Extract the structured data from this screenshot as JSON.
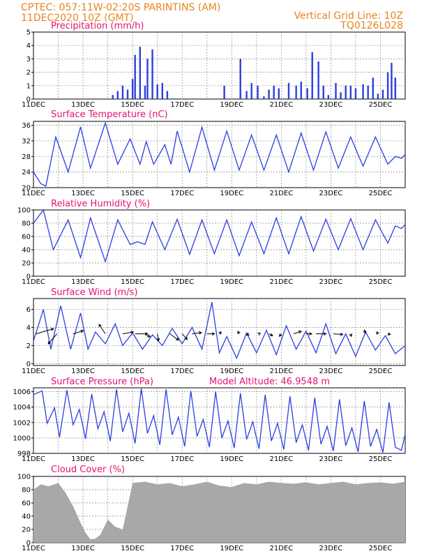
{
  "header": {
    "left_line1": "CPTEC:   057:11W-02:20S   PARINTINS (AM)",
    "left_line2": "11DEC2020  10Z (GMT)",
    "right_line1": "Vertical Grid Line: 10Z",
    "right_line2": "TQ0126L028",
    "model_altitude": "Model Altitude: 46.9548  m"
  },
  "colors": {
    "line": "#2b3fe0",
    "header": "#e8841e",
    "title": "#e5126f",
    "cloud": "#a8a8a8"
  },
  "x_ticks": [
    "11DEC",
    "13DEC",
    "15DEC",
    "17DEC",
    "19DEC",
    "21DEC",
    "23DEC",
    "25DEC"
  ],
  "chart_data": [
    {
      "type": "bar",
      "title": "Precipitation (mm/h)",
      "ylim": [
        0,
        5
      ],
      "yticks": [
        0,
        1,
        2,
        3,
        4,
        5
      ],
      "x_start": "2020-12-11T10Z",
      "x_end": "2020-12-26T10Z",
      "x": [
        3.2,
        3.4,
        3.6,
        3.8,
        4.0,
        4.1,
        4.3,
        4.5,
        4.6,
        4.8,
        5.0,
        5.2,
        5.4,
        7.7,
        8.35,
        8.6,
        8.8,
        9.05,
        9.3,
        9.5,
        9.7,
        9.9,
        10.3,
        10.6,
        10.8,
        11.05,
        11.25,
        11.5,
        11.7,
        11.9,
        12.2,
        12.4,
        12.6,
        12.8,
        13.0,
        13.3,
        13.5,
        13.7,
        13.9,
        14.1,
        14.3,
        14.45,
        14.6
      ],
      "values": [
        0.3,
        0.6,
        1.0,
        0.7,
        1.5,
        3.3,
        3.9,
        1.0,
        3.0,
        3.7,
        1.1,
        1.2,
        0.6,
        1.0,
        3.0,
        0.6,
        1.2,
        1.0,
        0.2,
        0.7,
        1.0,
        0.8,
        1.2,
        1.0,
        1.3,
        0.8,
        3.5,
        2.8,
        1.0,
        0.3,
        1.2,
        0.5,
        1.0,
        1.0,
        0.8,
        1.1,
        1.0,
        1.6,
        0.4,
        0.7,
        2.0,
        2.7,
        1.6
      ],
      "y_base": 0
    },
    {
      "type": "line",
      "title": "Surface Temperature (nC)",
      "ylim": [
        20,
        37
      ],
      "yticks": [
        20,
        24,
        28,
        32,
        36
      ],
      "x_days": [
        0,
        0.3,
        0.5,
        0.9,
        1.4,
        1.9,
        2.3,
        2.9,
        3.4,
        3.9,
        4.3,
        4.55,
        4.85,
        5.3,
        5.55,
        5.8,
        6.3,
        6.8,
        7.3,
        7.8,
        8.3,
        8.8,
        9.3,
        9.8,
        10.3,
        10.8,
        11.3,
        11.8,
        12.3,
        12.8,
        13.3,
        13.8,
        14.3,
        14.6,
        14.85,
        15
      ],
      "values": [
        24,
        21,
        20.4,
        33,
        24,
        35.6,
        25,
        36.6,
        26,
        32.5,
        26,
        31.8,
        26,
        31,
        26,
        34.5,
        24,
        35.5,
        24.5,
        34.5,
        24.5,
        33.5,
        24.5,
        33.5,
        24,
        34,
        24.5,
        34.3,
        25,
        33,
        25.5,
        33,
        26,
        28,
        27.5,
        28.5
      ],
      "y_base": 20
    },
    {
      "type": "line",
      "title": "Relative Humidity (%)",
      "ylim": [
        0,
        100
      ],
      "yticks": [
        0,
        20,
        40,
        60,
        80,
        100
      ],
      "x_days": [
        0,
        0.4,
        0.8,
        1.4,
        1.9,
        2.3,
        2.9,
        3.4,
        3.9,
        4.2,
        4.5,
        4.8,
        5.3,
        5.8,
        6.3,
        6.8,
        7.3,
        7.8,
        8.3,
        8.8,
        9.3,
        9.8,
        10.3,
        10.8,
        11.3,
        11.8,
        12.3,
        12.8,
        13.3,
        13.8,
        14.3,
        14.6,
        14.85,
        15
      ],
      "values": [
        80,
        100,
        40,
        85,
        28,
        88,
        22,
        85,
        48,
        52,
        48,
        82,
        40,
        86,
        33,
        85,
        34,
        85,
        31,
        82,
        34,
        88,
        34,
        90,
        38,
        86,
        40,
        87,
        40,
        85,
        50,
        76,
        72,
        78
      ],
      "y_base": 0
    },
    {
      "type": "line",
      "title": "Surface Wind (m/s)",
      "ylim": [
        -0.2,
        7.2
      ],
      "yticks": [
        0,
        2,
        4,
        6
      ],
      "x_days": [
        0,
        0.4,
        0.7,
        1.1,
        1.5,
        1.9,
        2.2,
        2.5,
        2.9,
        3.3,
        3.6,
        4.0,
        4.4,
        4.8,
        5.2,
        5.6,
        6.0,
        6.4,
        6.8,
        7.2,
        7.5,
        7.8,
        8.2,
        8.6,
        9.0,
        9.4,
        9.8,
        10.2,
        10.6,
        11.0,
        11.4,
        11.8,
        12.2,
        12.6,
        13.0,
        13.4,
        13.8,
        14.2,
        14.6,
        15
      ],
      "values": [
        2.5,
        6.0,
        1.6,
        6.4,
        1.6,
        5.6,
        1.6,
        3.5,
        2.2,
        4.4,
        2.0,
        3.4,
        1.6,
        3.2,
        2.0,
        3.9,
        2.2,
        4.0,
        1.6,
        6.8,
        1.2,
        3.0,
        0.6,
        3.4,
        1.2,
        3.7,
        1.0,
        4.2,
        1.6,
        3.6,
        1.2,
        4.4,
        1.1,
        3.3,
        0.8,
        3.5,
        1.5,
        3.1,
        1.1,
        2.0
      ],
      "vectors": {
        "x_days": [
          0.1,
          0.95,
          1.6,
          2.9,
          3.6,
          4.1,
          4.5,
          5.0,
          5.5,
          6.0,
          6.4,
          7.0,
          7.5,
          8.3,
          8.7,
          9.1,
          9.5,
          10.0,
          10.5,
          11.0,
          11.4,
          12.1,
          12.8,
          13.4,
          13.9,
          14.3
        ],
        "u": [
          2.8,
          -1.4,
          1.6,
          -1.0,
          1.7,
          2.0,
          0.8,
          0.2,
          1.4,
          0.8,
          1.5,
          1.2,
          0.3,
          -0.2,
          -0.4,
          0.2,
          0.6,
          -0.3,
          1.2,
          0.9,
          1.6,
          1.5,
          0.1,
          -0.2,
          -0.2,
          0.4
        ],
        "v": [
          0.8,
          -1.6,
          0.5,
          1.5,
          0.3,
          0.0,
          -0.5,
          -1.1,
          -1.0,
          -0.9,
          0.2,
          0.0,
          0.3,
          0.4,
          -0.2,
          0.1,
          -0.3,
          -0.4,
          0.4,
          0.0,
          0.0,
          -0.1,
          -0.4,
          0.6,
          0.3,
          -0.1
        ]
      },
      "y_base": 0
    },
    {
      "type": "line",
      "title": "Surface Pressure (hPa)",
      "ylim": [
        998,
        1006.5
      ],
      "yticks": [
        998,
        1000,
        1002,
        1004,
        1006
      ],
      "x_days": [
        0,
        0.35,
        0.55,
        0.85,
        1.05,
        1.35,
        1.6,
        1.85,
        2.1,
        2.35,
        2.6,
        2.85,
        3.1,
        3.35,
        3.6,
        3.85,
        4.1,
        4.35,
        4.6,
        4.85,
        5.1,
        5.35,
        5.6,
        5.85,
        6.1,
        6.35,
        6.6,
        6.85,
        7.1,
        7.35,
        7.6,
        7.85,
        8.1,
        8.35,
        8.6,
        8.85,
        9.1,
        9.35,
        9.6,
        9.85,
        10.1,
        10.35,
        10.6,
        10.85,
        11.1,
        11.35,
        11.6,
        11.85,
        12.1,
        12.35,
        12.6,
        12.85,
        13.1,
        13.35,
        13.6,
        13.85,
        14.1,
        14.35,
        14.6,
        14.85,
        15
      ],
      "values": [
        1005.6,
        1006.1,
        1001.9,
        1003.9,
        1000.1,
        1006.2,
        1001.7,
        1003.7,
        999.9,
        1005.7,
        1001.2,
        1003.4,
        999.6,
        1006.3,
        1000.8,
        1003.2,
        999.3,
        1006.4,
        1000.6,
        1002.9,
        999.1,
        1006.3,
        1000.4,
        1002.7,
        998.9,
        1006.1,
        1000.2,
        1002.4,
        998.8,
        1006.0,
        1000.0,
        1002.2,
        998.7,
        1005.8,
        999.8,
        1002.1,
        998.6,
        1005.6,
        999.6,
        1001.9,
        998.5,
        1005.4,
        999.4,
        1001.7,
        998.4,
        1005.2,
        999.2,
        1001.5,
        998.3,
        1005.0,
        999.0,
        1001.3,
        998.2,
        1004.8,
        998.9,
        1001.1,
        998.1,
        1004.6,
        998.8,
        998.4,
        1000.5
      ],
      "y_base": 998
    },
    {
      "type": "bar",
      "title": "Cloud Cover (%)",
      "ylim": [
        0,
        100
      ],
      "yticks": [
        0,
        20,
        40,
        60,
        80,
        100
      ],
      "x_days": [
        0,
        0.3,
        0.6,
        1.0,
        1.3,
        1.6,
        1.9,
        2.1,
        2.3,
        2.5,
        2.7,
        3.0,
        3.3,
        3.6,
        4.0,
        4.5,
        5.0,
        5.5,
        6.0,
        6.5,
        7.0,
        7.5,
        8.0,
        8.5,
        9.0,
        9.5,
        10.0,
        10.5,
        11.0,
        11.5,
        12.0,
        12.5,
        13.0,
        13.5,
        14.0,
        14.5,
        15
      ],
      "values": [
        80,
        88,
        85,
        90,
        75,
        55,
        30,
        15,
        5,
        6,
        12,
        35,
        24,
        20,
        90,
        92,
        88,
        90,
        85,
        88,
        92,
        86,
        84,
        90,
        88,
        92,
        90,
        89,
        91,
        88,
        90,
        92,
        88,
        90,
        91,
        89,
        92
      ],
      "y_base": 0
    }
  ]
}
